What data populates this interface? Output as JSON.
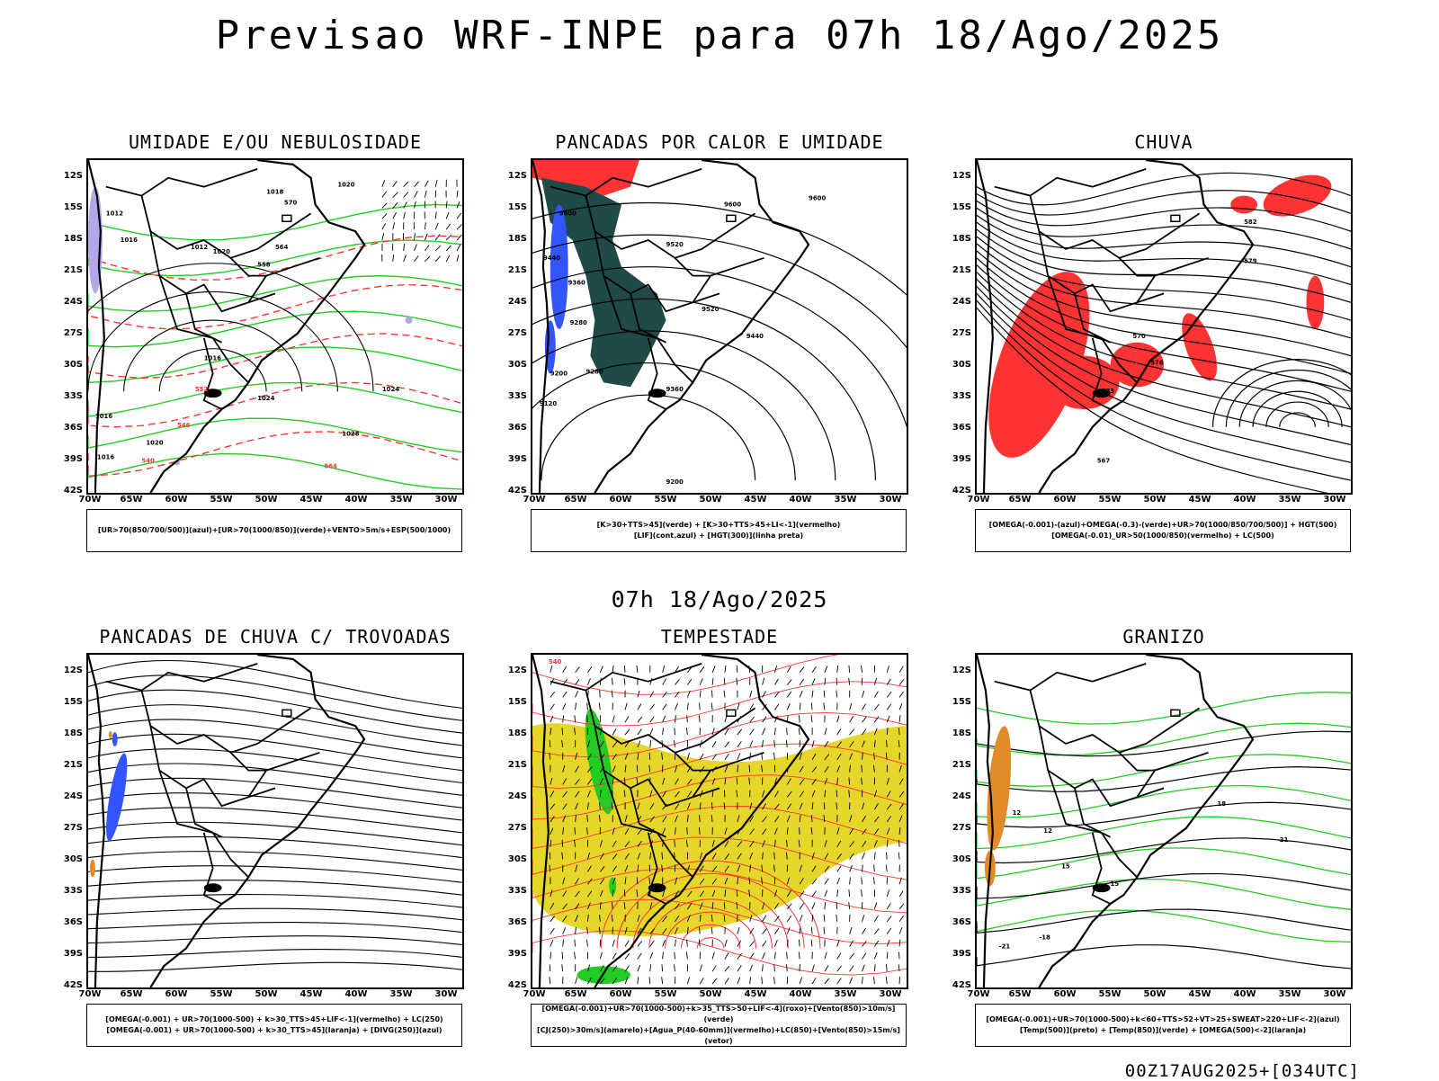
{
  "header": {
    "title": "Previsao WRF-INPE  para 07h 18/Ago/2025",
    "mid_date": "07h 18/Ago/2025",
    "footer": "00Z17AUG2025+[034UTC]"
  },
  "axes": {
    "lat_ticks": [
      "12S",
      "15S",
      "18S",
      "21S",
      "24S",
      "27S",
      "30S",
      "33S",
      "36S",
      "39S",
      "42S"
    ],
    "lon_ticks": [
      "70W",
      "65W",
      "60W",
      "55W",
      "50W",
      "45W",
      "40W",
      "35W",
      "30W"
    ]
  },
  "colors": {
    "green": "#22cc22",
    "red": "#ff3333",
    "blue": "#3355ff",
    "dark_teal": "#1f4a48",
    "yellow": "#e6d62a",
    "orange": "#e08a2a",
    "purple": "#b0a8e8"
  },
  "panels": [
    {
      "title": "UMIDADE E/OU NEBULOSIDADE",
      "legend": [
        "[UR>70(850/700/500)](azul)+[UR>70(1000/850)](verde)+VENTO>5m/s+ESP(500/1000)"
      ],
      "contour_labels": [
        "1020",
        "1012",
        "1016",
        "1012",
        "1020",
        "1024",
        "1024",
        "1028",
        "1016",
        "1016",
        "1020",
        "1016",
        "570",
        "564",
        "558",
        "552",
        "546",
        "540",
        "564",
        "1018"
      ]
    },
    {
      "title": "PANCADAS POR CALOR E UMIDADE",
      "legend": [
        "[K>30+TTS>45](verde) + [K>30+TTS>45+LI<-1](vermelho)",
        "[LIF](cont.azul) + [HGT(300)](linha preta)"
      ],
      "contour_labels": [
        "9600",
        "9600",
        "9520",
        "9440",
        "9360",
        "9280",
        "9200",
        "9120",
        "9520",
        "9440",
        "9360",
        "9280",
        "9600",
        "9200"
      ]
    },
    {
      "title": "CHUVA",
      "legend": [
        "[OMEGA(-0.001)-(azul)+OMEGA(-0.3)-(verde)+UR>70(1000/850/700/500)] + HGT(500)",
        "[OMEGA(-0.01)_UR>50(1000/850)(vermelho) + LC(500)"
      ],
      "contour_labels": [
        "582",
        "579",
        "576",
        "573",
        "567",
        "570"
      ]
    },
    {
      "title": "PANCADAS DE CHUVA C/ TROVOADAS",
      "legend": [
        "[OMEGA(-0.001) + UR>70(1000-500) + k>30_TTS>45+LIF<-1](vermelho) + LC(250)",
        "[OMEGA(-0.001) + UR>70(1000-500) + k>30_TTS>45](laranja) + [DIVG(250)](azul)"
      ],
      "contour_labels": []
    },
    {
      "title": "TEMPESTADE",
      "legend": [
        "[OMEGA(-0.001)+UR>70(1000-500)+k>35_TTS>50+LIF<-4](roxo)+[Vento(850)>10m/s](verde)",
        "[CJ(250)>30m/s](amarelo)+[Agua_P(40-60mm)](vermelho)+LC(850)+[Vento(850)>15m/s](vetor)"
      ],
      "contour_labels": [
        "540"
      ]
    },
    {
      "title": "GRANIZO",
      "legend": [
        "[OMEGA(-0.001)+UR>70(1000-500)+k<60+TTS>52+VT>25+SWEAT>220+LIF<-2](azul)",
        "[Temp(500)](preto) + [Temp(850)](verde) + [OMEGA(500)<-2](laranja)"
      ],
      "contour_labels": [
        "12",
        "15",
        "18",
        "21",
        "-21",
        "-18",
        "15",
        "12"
      ]
    }
  ]
}
